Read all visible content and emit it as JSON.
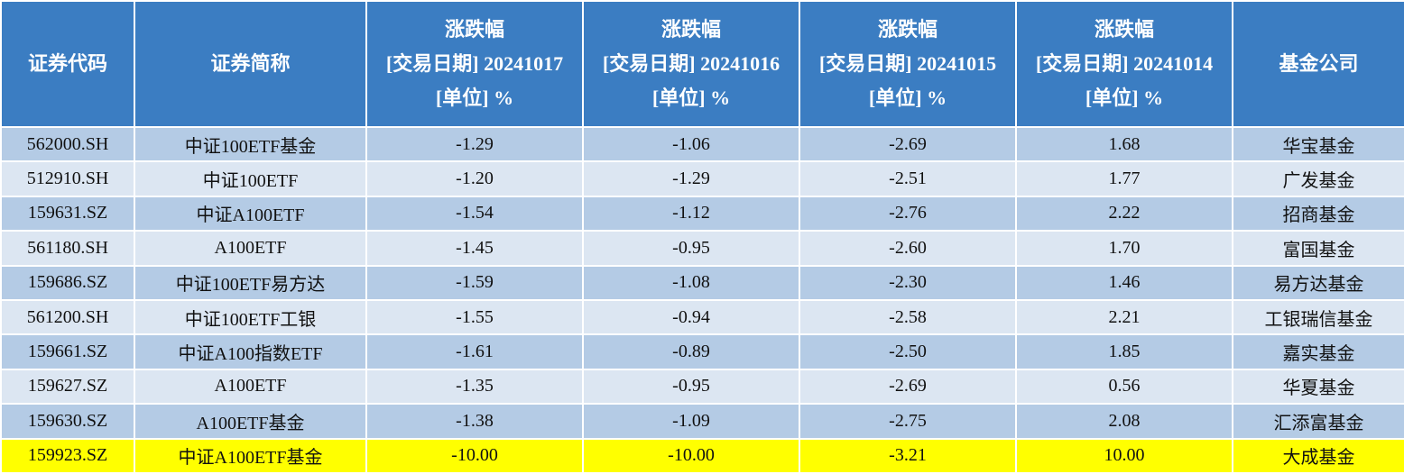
{
  "table": {
    "header": [
      [
        "证券代码"
      ],
      [
        "证券简称"
      ],
      [
        "涨跌幅",
        "[交易日期] 20241017",
        "[单位] %"
      ],
      [
        "涨跌幅",
        "[交易日期] 20241016",
        "[单位] %"
      ],
      [
        "涨跌幅",
        "[交易日期] 20241015",
        "[单位] %"
      ],
      [
        "涨跌幅",
        "[交易日期] 20241014",
        "[单位] %"
      ],
      [
        "基金公司"
      ]
    ],
    "rows": [
      [
        "562000.SH",
        "中证100ETF基金",
        "-1.29",
        "-1.06",
        "-2.69",
        "1.68",
        "华宝基金"
      ],
      [
        "512910.SH",
        "中证100ETF",
        "-1.20",
        "-1.29",
        "-2.51",
        "1.77",
        "广发基金"
      ],
      [
        "159631.SZ",
        "中证A100ETF",
        "-1.54",
        "-1.12",
        "-2.76",
        "2.22",
        "招商基金"
      ],
      [
        "561180.SH",
        "A100ETF",
        "-1.45",
        "-0.95",
        "-2.60",
        "1.70",
        "富国基金"
      ],
      [
        "159686.SZ",
        "中证100ETF易方达",
        "-1.59",
        "-1.08",
        "-2.30",
        "1.46",
        "易方达基金"
      ],
      [
        "561200.SH",
        "中证100ETF工银",
        "-1.55",
        "-0.94",
        "-2.58",
        "2.21",
        "工银瑞信基金"
      ],
      [
        "159661.SZ",
        "中证A100指数ETF",
        "-1.61",
        "-0.89",
        "-2.50",
        "1.85",
        "嘉实基金"
      ],
      [
        "159627.SZ",
        "A100ETF",
        "-1.35",
        "-0.95",
        "-2.69",
        "0.56",
        "华夏基金"
      ],
      [
        "159630.SZ",
        "A100ETF基金",
        "-1.38",
        "-1.09",
        "-2.75",
        "2.08",
        "汇添富基金"
      ],
      [
        "159923.SZ",
        "中证A100ETF基金",
        "-10.00",
        "-10.00",
        "-3.21",
        "10.00",
        "大成基金"
      ]
    ]
  }
}
